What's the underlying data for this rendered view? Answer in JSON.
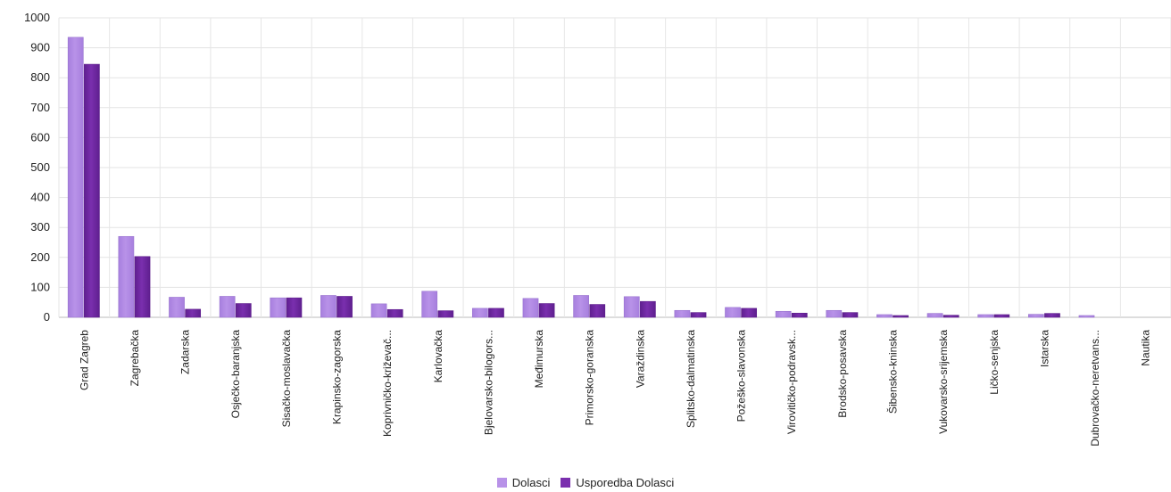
{
  "chart_data": {
    "type": "bar",
    "title": "",
    "xlabel": "",
    "ylabel": "",
    "ylim": [
      0,
      1000
    ],
    "yticks": [
      0,
      100,
      200,
      300,
      400,
      500,
      600,
      700,
      800,
      900,
      1000
    ],
    "grid": true,
    "legend_position": "bottom",
    "categories": [
      "Grad Zagreb",
      "Zagrebačka",
      "Zadarska",
      "Osječko-baranjska",
      "Sisačko-moslavačka",
      "Krapinsko-zagorska",
      "Koprivničko-križevač...",
      "Karlovačka",
      "Bjelovarsko-bilogors...",
      "Međimurska",
      "Primorsko-goranska",
      "Varaždinska",
      "Splitsko-dalmatinska",
      "Požeško-slavonska",
      "Virovitičko-podravsk...",
      "Brodsko-posavska",
      "Šibensko-kninska",
      "Vukovarsko-srijemska",
      "Ličko-senjska",
      "Istarska",
      "Dubrovačko-neretvans...",
      "Nautika"
    ],
    "series": [
      {
        "name": "Dolasci",
        "color": "#b892e8",
        "values": [
          935,
          270,
          67,
          70,
          65,
          73,
          45,
          87,
          30,
          63,
          73,
          69,
          23,
          33,
          20,
          23,
          9,
          13,
          9,
          10,
          6,
          0
        ]
      },
      {
        "name": "Usporedba Dolasci",
        "color": "#7a2fae",
        "values": [
          845,
          203,
          27,
          46,
          65,
          70,
          26,
          22,
          30,
          46,
          43,
          53,
          16,
          30,
          14,
          16,
          6,
          7,
          9,
          13,
          0,
          0
        ]
      }
    ]
  }
}
